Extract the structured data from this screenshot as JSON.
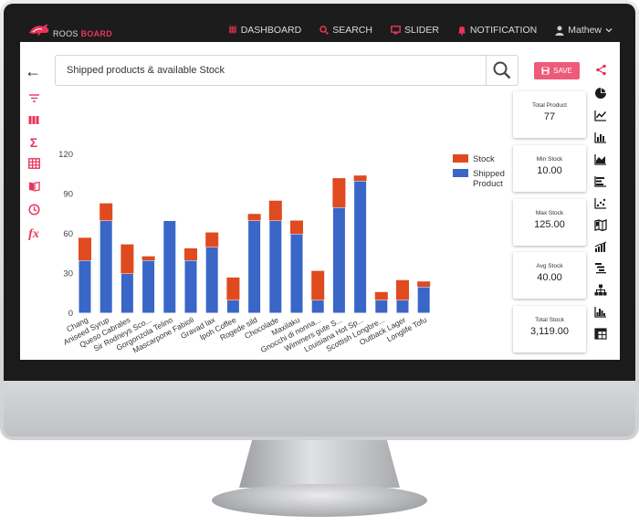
{
  "brand": {
    "name_part1": "ROOS",
    "name_part2": "BOARD",
    "accent": "#e8355a"
  },
  "nav": {
    "items": [
      {
        "label": "DASHBOARD",
        "icon": "dashboard-icon"
      },
      {
        "label": "SEARCH",
        "icon": "search-icon"
      },
      {
        "label": "SLIDER",
        "icon": "monitor-icon"
      },
      {
        "label": "NOTIFICATION",
        "icon": "bell-icon"
      }
    ],
    "user": "Mathew"
  },
  "search": {
    "value": "Shipped products & available Stock"
  },
  "toolbar": {
    "save_label": "SAVE"
  },
  "stats": [
    {
      "label": "Total Product",
      "value": "77"
    },
    {
      "label": "Min Stock",
      "value": "10.00"
    },
    {
      "label": "Max Stock",
      "value": "125.00"
    },
    {
      "label": "Avg Stock",
      "value": "40.00"
    },
    {
      "label": "Total Stock",
      "value": "3,119.00"
    }
  ],
  "left_tools": [
    "filter-icon",
    "columns-icon",
    "sigma-icon",
    "table-icon",
    "book-icon",
    "clock-icon",
    "fx-icon"
  ],
  "right_tools": [
    "share-icon",
    "pie-chart-icon",
    "line-chart-icon",
    "bar-chart-icon",
    "area-chart-icon",
    "horizontal-bar-icon",
    "scatter-icon",
    "map-icon",
    "stacked-bar-icon",
    "gantt-icon",
    "org-chart-icon",
    "histogram-icon",
    "pivot-table-icon"
  ],
  "chart_data": {
    "type": "bar",
    "stacked": true,
    "categories": [
      "Chang",
      "Aniseed Syrup",
      "Queso Cabrales",
      "Sir Rodneys Sco...",
      "Gorgonzola Telino",
      "Mascarpone Fabioli",
      "Gravad lax",
      "Ipoh Coffee",
      "Rogede sild",
      "Chocolade",
      "Maxilaku",
      "Gnocchi di nonna...",
      "Wimmers gute S...",
      "Louisiana Hot Sp...",
      "Scottish Longbre...",
      "Outback Lager",
      "Longlife Tofu"
    ],
    "series": [
      {
        "name": "Shipped Product",
        "color": "#3a66c8",
        "values": [
          40,
          70,
          30,
          40,
          70,
          40,
          50,
          10,
          70,
          70,
          60,
          10,
          80,
          100,
          10,
          10,
          20
        ]
      },
      {
        "name": "Stock",
        "color": "#e04a1f",
        "values": [
          17,
          13,
          22,
          3,
          0,
          9,
          11,
          17,
          5,
          15,
          10,
          22,
          22,
          4,
          6,
          15,
          4
        ]
      }
    ],
    "yticks": [
      "0",
      "30",
      "60",
      "90",
      "120"
    ],
    "ylim": [
      0,
      120
    ],
    "legend": "top-right",
    "grid": false
  }
}
